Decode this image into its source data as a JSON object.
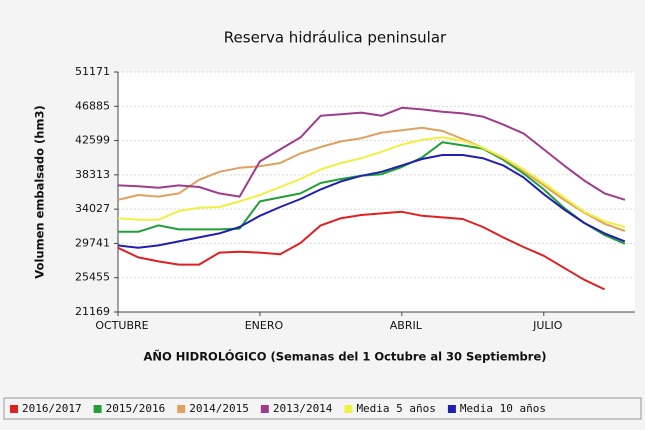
{
  "chart_data": {
    "type": "line",
    "title": "Reserva hidráulica peninsular",
    "x_label": "AÑO HIDROLÓGICO  (Semanas del 1 Octubre al 30 Septiembre)",
    "y_label": "Volumen   embalsado   (hm3)",
    "xlim": [
      0,
      25.5
    ],
    "xticks": [
      {
        "value": 0,
        "label": "OCTUBRE"
      },
      {
        "value": 7,
        "label": "ENERO"
      },
      {
        "value": 14,
        "label": "ABRIL"
      },
      {
        "value": 21,
        "label": "JULIO"
      }
    ],
    "ylim": [
      21169,
      51171
    ],
    "yticks": [
      21169,
      25455,
      29741,
      34027,
      38313,
      42599,
      46885,
      51171
    ],
    "grid": true,
    "legend": "bottom",
    "series": [
      {
        "name": "2016/2017",
        "color": "#e02020",
        "values": [
          29200,
          28000,
          27500,
          27100,
          27100,
          28600,
          28700,
          28600,
          28400,
          29800,
          32000,
          32900,
          33300,
          33500,
          33700,
          33200,
          33000,
          32800,
          31800,
          30500,
          29300,
          28200,
          26700,
          25200,
          24000,
          null
        ]
      },
      {
        "name": "2015/2016",
        "color": "#22a035",
        "values": [
          31200,
          31200,
          32000,
          31500,
          31500,
          31500,
          31600,
          35000,
          35500,
          36000,
          37300,
          37800,
          38200,
          38400,
          39300,
          40500,
          42400,
          42000,
          41600,
          40200,
          38500,
          36500,
          34200,
          32300,
          30800,
          29700
        ]
      },
      {
        "name": "2014/2015",
        "color": "#e0a060",
        "values": [
          35200,
          35800,
          35600,
          36000,
          37700,
          38700,
          39200,
          39400,
          39800,
          41000,
          41800,
          42500,
          42900,
          43600,
          43900,
          44200,
          43800,
          42800,
          41700,
          40400,
          38800,
          37000,
          35200,
          33600,
          32200,
          31300
        ]
      },
      {
        "name": "2013/2014",
        "color": "#a03c8c",
        "values": [
          37000,
          36900,
          36700,
          37000,
          36800,
          36000,
          35600,
          40000,
          41500,
          43000,
          45700,
          45900,
          46100,
          45700,
          46700,
          46500,
          46200,
          46000,
          45600,
          44600,
          43500,
          41500,
          39500,
          37600,
          36000,
          35200
        ]
      },
      {
        "name": "Media 5 años",
        "color": "#f0f040",
        "values": [
          32900,
          32700,
          32700,
          33800,
          34200,
          34300,
          35000,
          35800,
          36800,
          37800,
          39000,
          39800,
          40400,
          41200,
          42100,
          42700,
          43000,
          42600,
          41700,
          40500,
          39000,
          37300,
          35500,
          33700,
          32500,
          31800
        ]
      },
      {
        "name": "Media 10 años",
        "color": "#2020b0",
        "values": [
          29500,
          29200,
          29500,
          30000,
          30500,
          31000,
          31800,
          33200,
          34300,
          35300,
          36500,
          37500,
          38200,
          38700,
          39500,
          40300,
          40800,
          40800,
          40400,
          39500,
          38000,
          35900,
          34000,
          32300,
          31000,
          30000
        ]
      }
    ]
  }
}
